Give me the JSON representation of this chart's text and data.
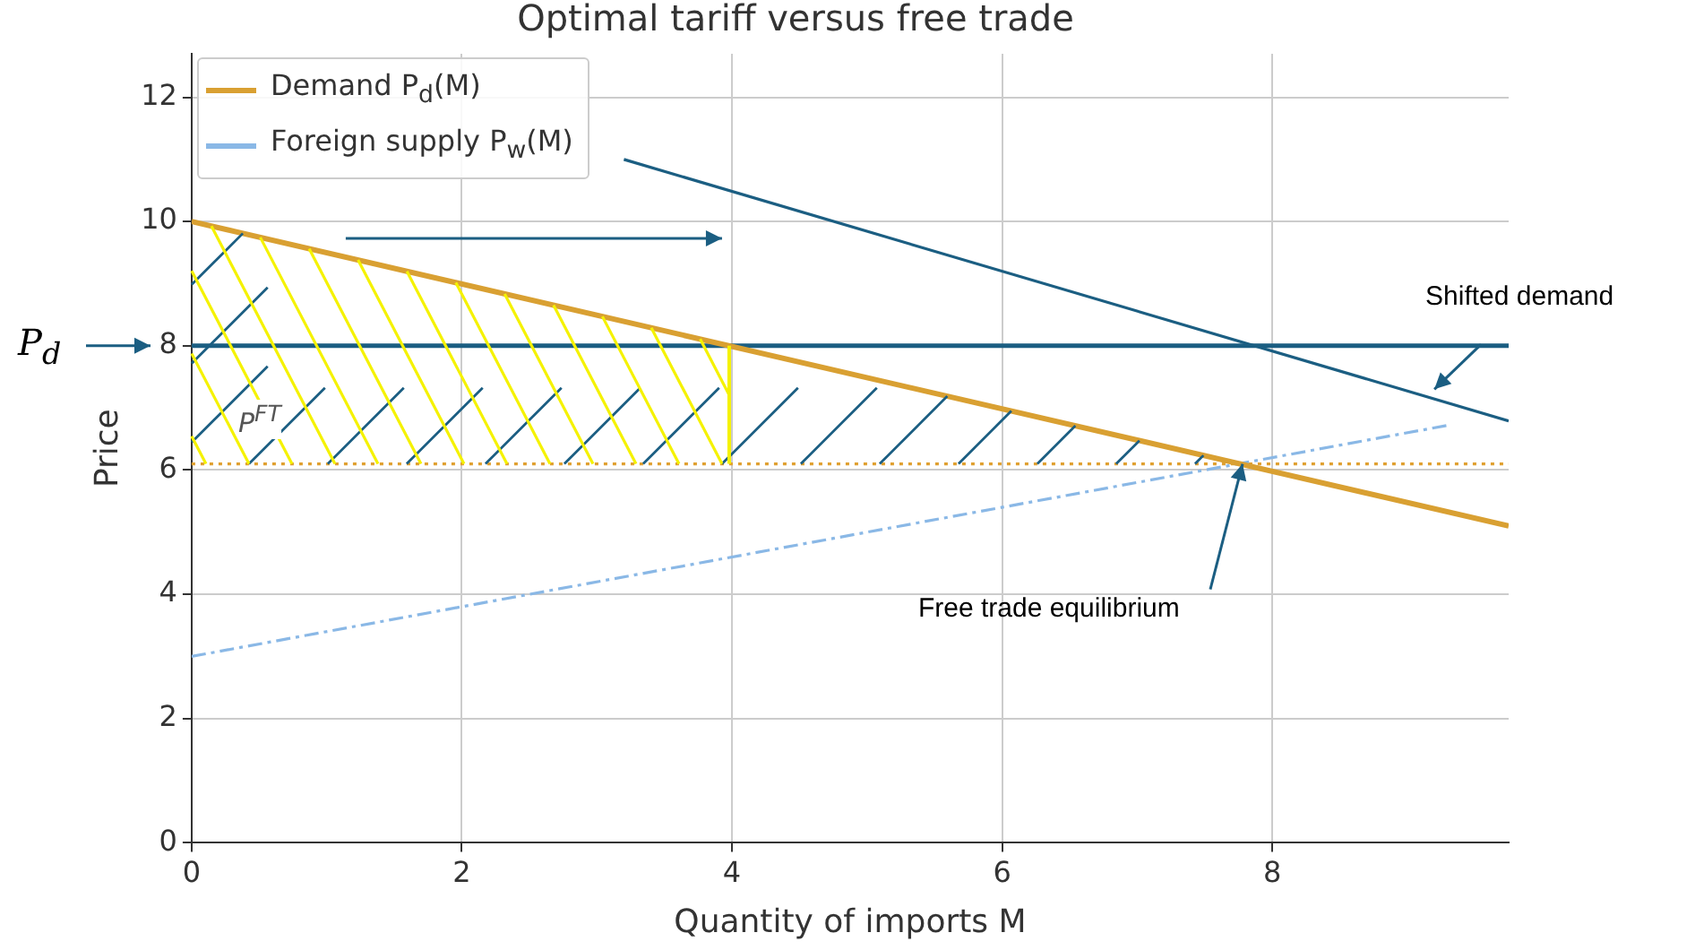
{
  "chart_data": {
    "type": "line",
    "title": "Optimal tariff versus free trade",
    "xlabel": "Quantity of imports M",
    "ylabel": "Price",
    "series": [
      {
        "name": "Demand P$_{d}$(M)",
        "color": "#d9a032",
        "x": [
          0,
          9.75
        ],
        "values": [
          10,
          5.1
        ]
      },
      {
        "name": "Foreign supply P$_{w}$(M)",
        "color": "#8ab8e6",
        "x": [
          0,
          9.3
        ],
        "values": [
          3,
          6.72
        ],
        "line_style": "dashed"
      },
      {
        "color": "#1b5e82",
        "x": [
          3.2,
          9.75
        ],
        "values": [
          11,
          6.79
        ]
      }
    ],
    "ref_lines": [
      {
        "axis": "y",
        "value": 8,
        "color": "#1b5e82",
        "line_style": "solid"
      },
      {
        "axis": "y",
        "value": 6.1,
        "label": "P$^{FT}$",
        "color": "#e0a030",
        "line_style": "dotted"
      }
    ],
    "annotations": [
      "P$_{d}$",
      {
        "text": "Shifted demand",
        "x": 9.2,
        "y": 7.3
      },
      {
        "text": "Free trade equilibrium",
        "x": 7.78,
        "y": 6.1
      }
    ],
    "xlim": [
      0,
      9.75
    ],
    "xticks": [
      0,
      2,
      4,
      6,
      8
    ],
    "ylim": [
      0,
      12.7
    ],
    "yticks": [
      0,
      2,
      4,
      6,
      8,
      10,
      12
    ],
    "grid": true,
    "legend": "top left"
  }
}
